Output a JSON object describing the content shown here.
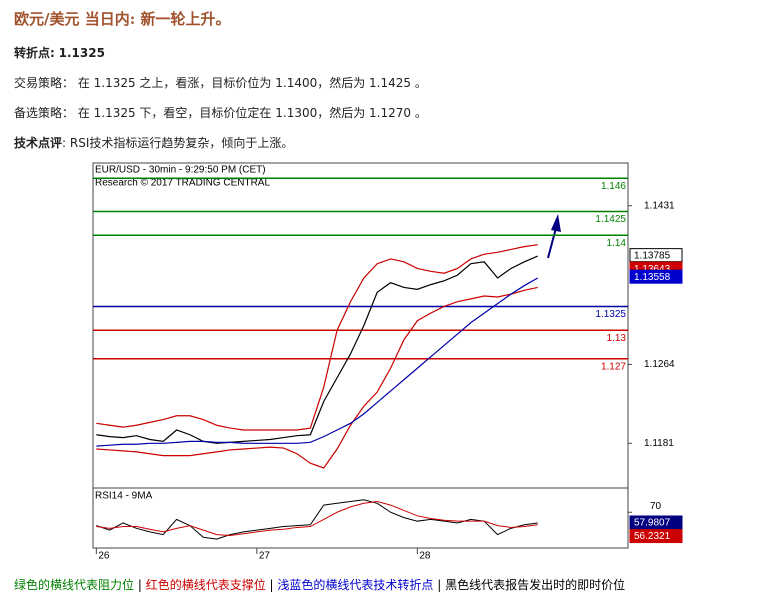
{
  "header": {
    "title": "欧元/美元 当日内: 新一轮上升。"
  },
  "pivot": {
    "label": "转折点:",
    "value": "1.1325"
  },
  "paragraphs": [
    "交易策略： 在 1.1325 之上，看涨，目标价位为 1.1400，然后为 1.1425 。",
    "备选策略： 在 1.1325 下，看空，目标价位定在 1.1300，然后为 1.1270 。"
  ],
  "comment": {
    "label": "技术点评",
    "text": ": RSI技术指标运行趋势复杂，倾向于上涨。"
  },
  "footer": [
    {
      "text": "绿色的横线代表阻力位",
      "color": "#008000"
    },
    {
      "text": " | ",
      "color": "#000000"
    },
    {
      "text": "红色的横线代表支撑位",
      "color": "#cc0000"
    },
    {
      "text": " | ",
      "color": "#000000"
    },
    {
      "text": "浅蓝色的横线代表技术转折点",
      "color": "#0000cc"
    },
    {
      "text": " | ",
      "color": "#000000"
    },
    {
      "text": "黑色线代表报告发出时的即时价位",
      "color": "#000000"
    }
  ],
  "chart_data": {
    "type": "line",
    "title": "EUR/USD - 30min - 9:29:50 PM (CET)",
    "subtitle": "Research © 2017 TRADING CENTRAL",
    "xlim": [
      -1,
      159
    ],
    "ylim": [
      1.1135,
      1.1476
    ],
    "xticks": [
      {
        "value": 0,
        "label": "26"
      },
      {
        "value": 48,
        "label": "27"
      },
      {
        "value": 96,
        "label": "28"
      }
    ],
    "yticks": [
      1.1431,
      1.1264,
      1.1181
    ],
    "levels": [
      {
        "value": 1.146,
        "color": "#008000"
      },
      {
        "value": 1.1425,
        "color": "#008000"
      },
      {
        "value": 1.14,
        "color": "#008000"
      },
      {
        "value": 1.1325,
        "color": "#0000aa"
      },
      {
        "value": 1.13,
        "color": "#cc0000"
      },
      {
        "value": 1.127,
        "color": "#cc0000"
      }
    ],
    "price_tags": [
      {
        "value": 1.13785,
        "color": "#000000"
      },
      {
        "value": 1.13643,
        "color": "#cc0000"
      },
      {
        "value": 1.13558,
        "color": "#0000cc"
      }
    ],
    "x": [
      0,
      4,
      8,
      12,
      16,
      20,
      24,
      28,
      32,
      36,
      40,
      44,
      48,
      52,
      56,
      60,
      64,
      68,
      72,
      76,
      80,
      84,
      88,
      92,
      96,
      100,
      104,
      108,
      112,
      116,
      120,
      124,
      128,
      132
    ],
    "series": [
      {
        "name": "Price",
        "color": "#000000",
        "values": [
          1.119,
          1.1188,
          1.1187,
          1.1189,
          1.1185,
          1.1183,
          1.1195,
          1.119,
          1.1183,
          1.1181,
          1.1182,
          1.1183,
          1.1184,
          1.1185,
          1.1187,
          1.1189,
          1.119,
          1.1225,
          1.125,
          1.1275,
          1.1305,
          1.134,
          1.135,
          1.1345,
          1.1343,
          1.1348,
          1.1352,
          1.1358,
          1.137,
          1.1372,
          1.1355,
          1.1365,
          1.1372,
          1.1378
        ]
      },
      {
        "name": "Upper",
        "color": "#cc0000",
        "values": [
          1.1202,
          1.12,
          1.1198,
          1.12,
          1.1203,
          1.1206,
          1.121,
          1.121,
          1.1206,
          1.12,
          1.1197,
          1.1195,
          1.1195,
          1.1195,
          1.1195,
          1.1195,
          1.1197,
          1.124,
          1.13,
          1.133,
          1.1355,
          1.137,
          1.1375,
          1.1372,
          1.1365,
          1.1362,
          1.136,
          1.1365,
          1.1375,
          1.138,
          1.1382,
          1.1385,
          1.1388,
          1.139
        ]
      },
      {
        "name": "Lower",
        "color": "#cc0000",
        "values": [
          1.1175,
          1.1174,
          1.1173,
          1.1172,
          1.117,
          1.1168,
          1.1168,
          1.1168,
          1.117,
          1.1172,
          1.1174,
          1.1175,
          1.1176,
          1.1177,
          1.1176,
          1.117,
          1.116,
          1.1155,
          1.1175,
          1.12,
          1.122,
          1.1235,
          1.126,
          1.129,
          1.131,
          1.1318,
          1.1325,
          1.133,
          1.1333,
          1.1336,
          1.1335,
          1.1338,
          1.1342,
          1.1345
        ]
      },
      {
        "name": "MA",
        "color": "#0000aa",
        "values": [
          1.1178,
          1.1179,
          1.118,
          1.118,
          1.1181,
          1.1181,
          1.1182,
          1.1183,
          1.1183,
          1.1182,
          1.1182,
          1.1181,
          1.1181,
          1.1181,
          1.1181,
          1.1181,
          1.1182,
          1.1188,
          1.1195,
          1.1202,
          1.1212,
          1.1224,
          1.1236,
          1.1248,
          1.126,
          1.1272,
          1.1284,
          1.1296,
          1.1308,
          1.1318,
          1.1328,
          1.1338,
          1.1347,
          1.1355
        ]
      }
    ],
    "rsi": {
      "title": "RSI14 - 9MA",
      "ylim": [
        30,
        96
      ],
      "yticks": [
        70
      ],
      "series": [
        {
          "name": "RSI14",
          "color": "#000000",
          "values": [
            55,
            50,
            58,
            52,
            48,
            45,
            62,
            55,
            42,
            40,
            45,
            48,
            50,
            52,
            54,
            55,
            56,
            78,
            80,
            82,
            84,
            80,
            70,
            64,
            60,
            62,
            60,
            58,
            62,
            60,
            45,
            52,
            56,
            58
          ]
        },
        {
          "name": "9MA",
          "color": "#cc0000",
          "values": [
            54,
            52,
            54,
            54,
            51,
            48,
            52,
            55,
            50,
            45,
            44,
            46,
            48,
            50,
            51,
            53,
            54,
            62,
            70,
            76,
            80,
            82,
            78,
            72,
            66,
            63,
            61,
            60,
            60,
            60,
            55,
            53,
            54,
            56
          ]
        }
      ],
      "tags": [
        {
          "value": 57.9807,
          "color": "#000080"
        },
        {
          "value": 56.2321,
          "color": "#cc0000"
        }
      ]
    }
  }
}
